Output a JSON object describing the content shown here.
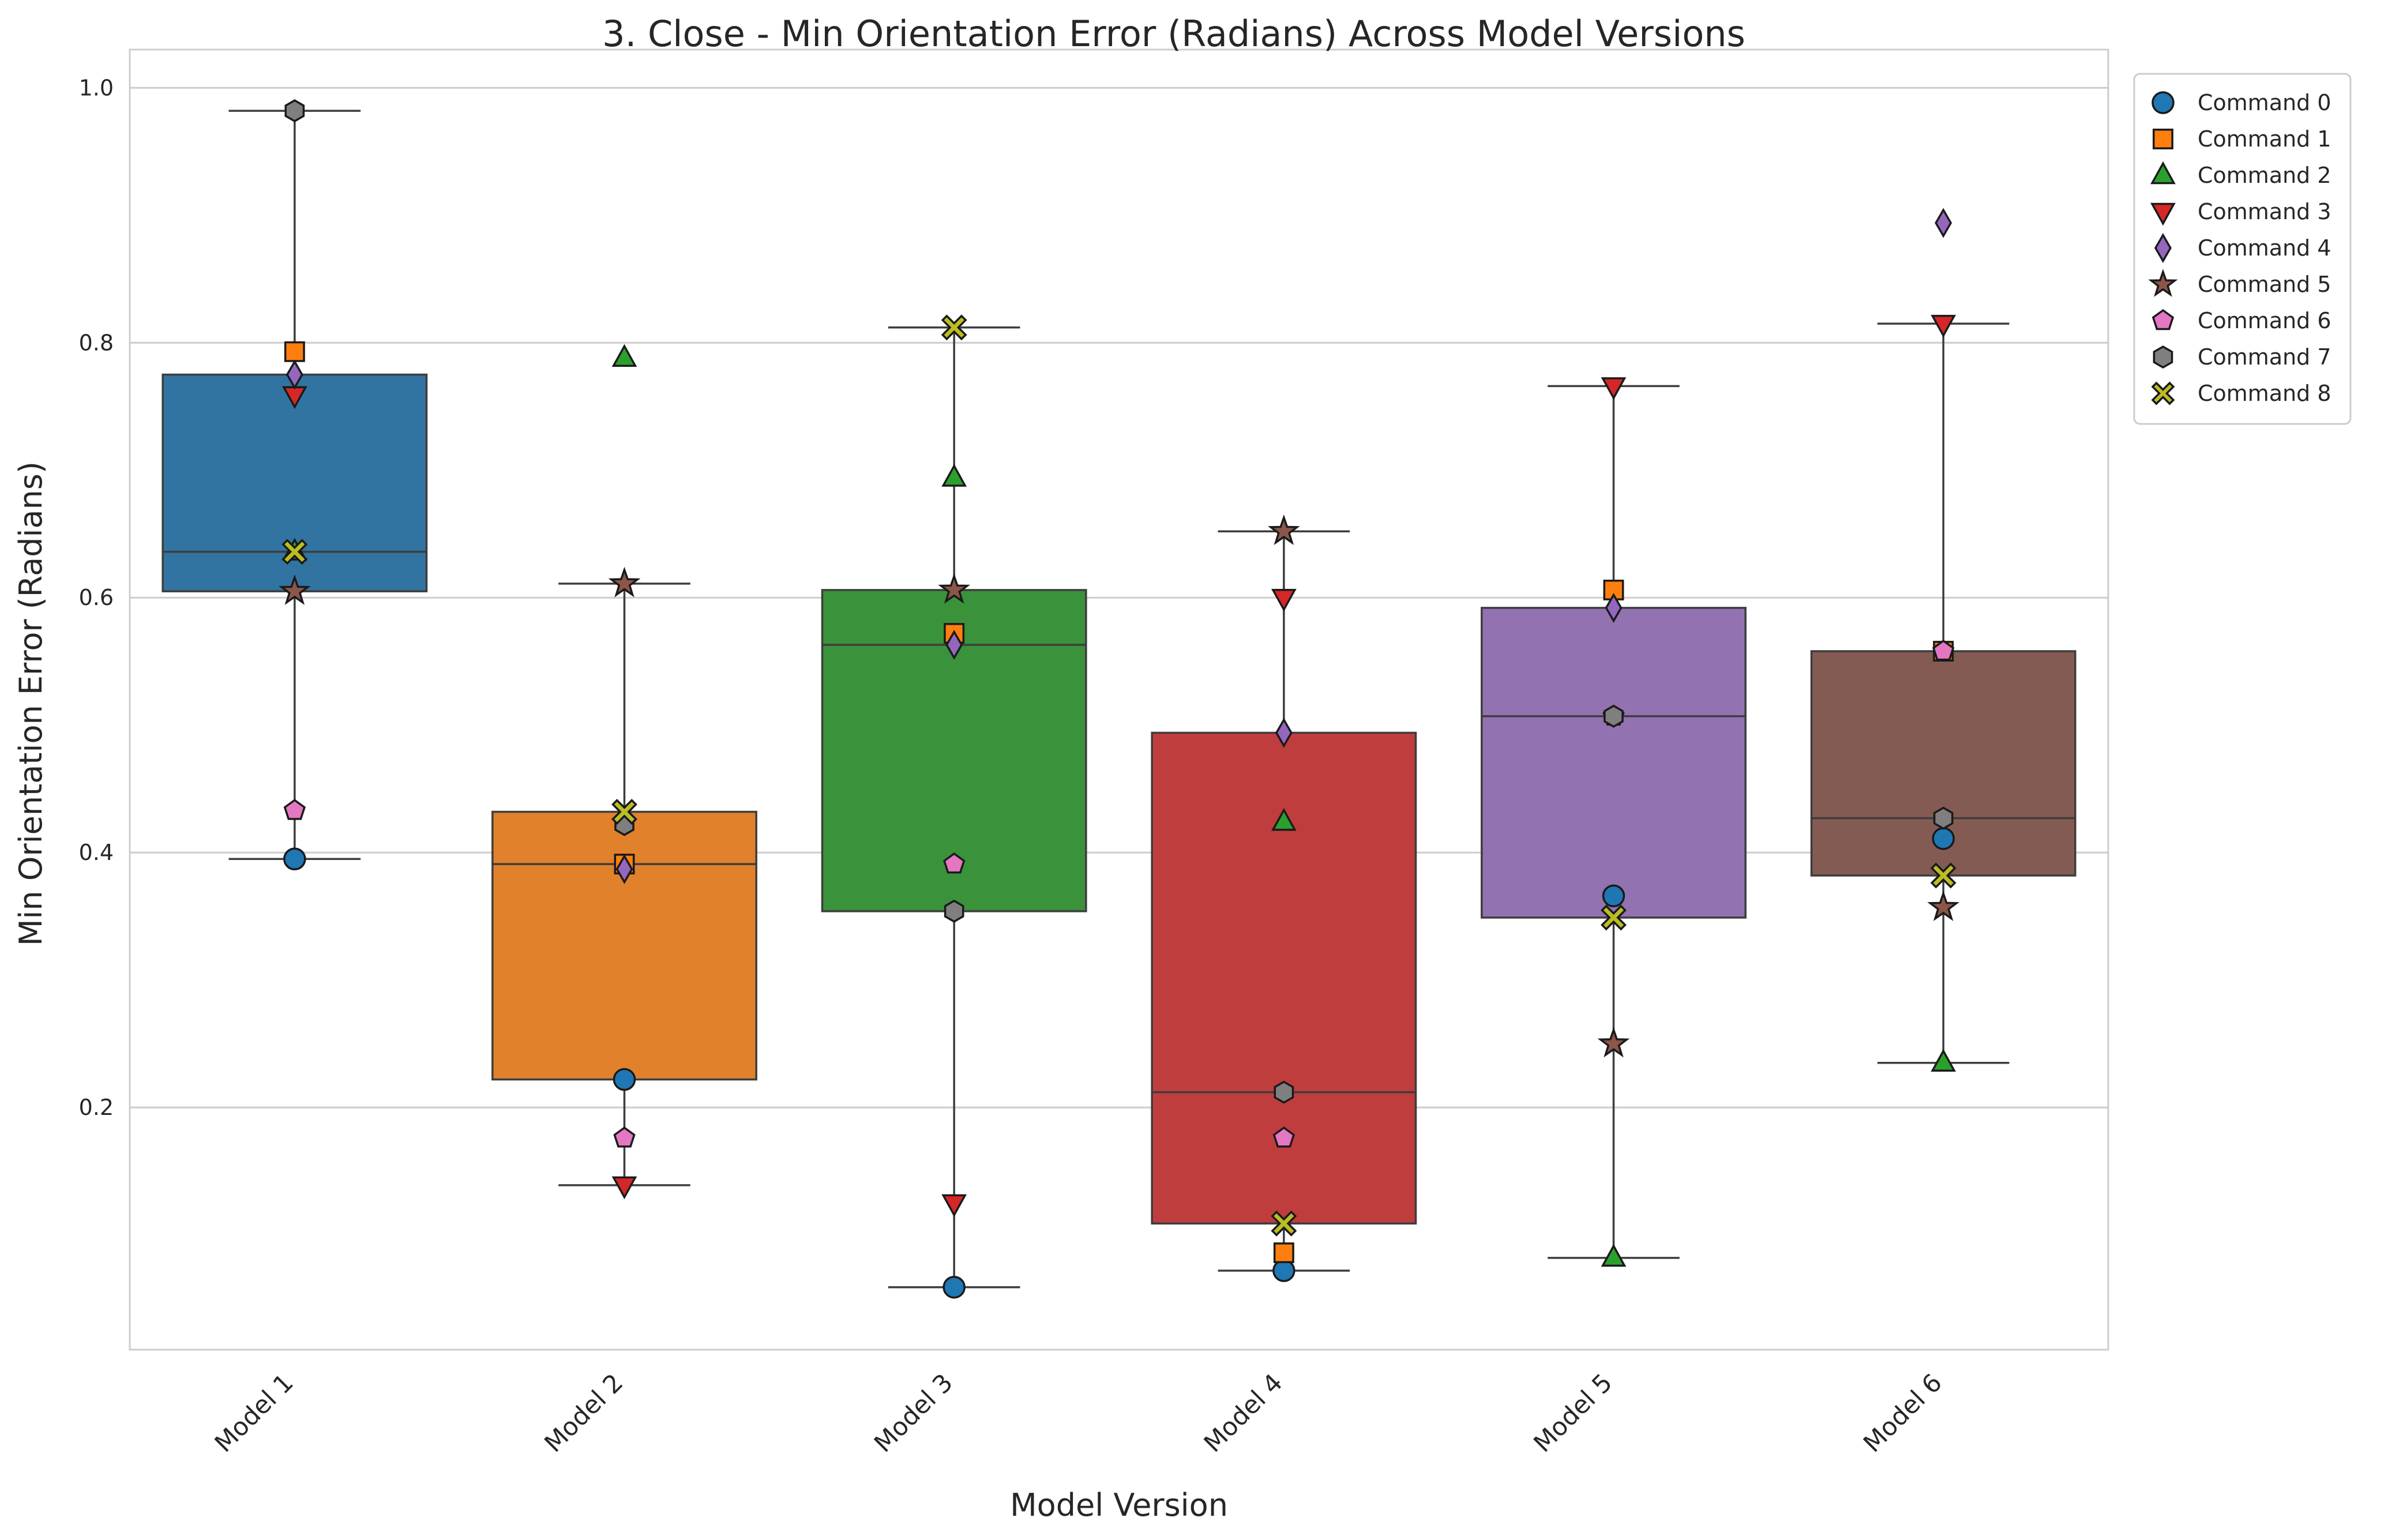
{
  "chart_data": {
    "type": "box",
    "title": "3. Close - Min Orientation Error (Radians) Across Model Versions",
    "xlabel": "Model Version",
    "ylabel": "Min Orientation Error (Radians)",
    "ylim": [
      0.01,
      1.03
    ],
    "yticks": [
      "0.2",
      "0.4",
      "0.6",
      "0.8",
      "1.0"
    ],
    "ytick_values": [
      0.2,
      0.4,
      0.6,
      0.8,
      1.0
    ],
    "grid": "horizontal",
    "legend_position": "outside-top-right",
    "categories": [
      "Model 1",
      "Model 2",
      "Model 3",
      "Model 4",
      "Model 5",
      "Model 6"
    ],
    "box_colors": [
      "#3274a1",
      "#e1812c",
      "#3a923a",
      "#c03d3e",
      "#9372b2",
      "#845b53"
    ],
    "boxes": [
      {
        "whisker_low": 0.395,
        "q1": 0.605,
        "median": 0.636,
        "q3": 0.775,
        "whisker_high": 0.982
      },
      {
        "whisker_low": 0.139,
        "q1": 0.222,
        "median": 0.391,
        "q3": 0.432,
        "whisker_high": 0.611
      },
      {
        "whisker_low": 0.059,
        "q1": 0.354,
        "median": 0.563,
        "q3": 0.606,
        "whisker_high": 0.812
      },
      {
        "whisker_low": 0.072,
        "q1": 0.109,
        "median": 0.212,
        "q3": 0.494,
        "whisker_high": 0.652
      },
      {
        "whisker_low": 0.082,
        "q1": 0.349,
        "median": 0.507,
        "q3": 0.592,
        "whisker_high": 0.766
      },
      {
        "whisker_low": 0.235,
        "q1": 0.382,
        "median": 0.427,
        "q3": 0.558,
        "whisker_high": 0.815
      }
    ],
    "series": [
      {
        "name": "Command 0",
        "marker": "circle",
        "color": "#1f77b4",
        "values": [
          0.395,
          0.222,
          0.059,
          0.072,
          0.366,
          0.411
        ]
      },
      {
        "name": "Command 1",
        "marker": "square",
        "color": "#ff7f0e",
        "values": [
          0.793,
          0.391,
          0.572,
          0.086,
          0.606,
          0.558
        ]
      },
      {
        "name": "Command 2",
        "marker": "triangle-up",
        "color": "#2ca02c",
        "values": [
          0.636,
          0.788,
          0.694,
          0.424,
          0.082,
          0.235
        ]
      },
      {
        "name": "Command 3",
        "marker": "triangle-down",
        "color": "#d62728",
        "values": [
          0.759,
          0.139,
          0.125,
          0.6,
          0.766,
          0.815
        ]
      },
      {
        "name": "Command 4",
        "marker": "diamond",
        "color": "#9467bd",
        "values": [
          0.775,
          0.387,
          0.563,
          0.494,
          0.592,
          0.894
        ]
      },
      {
        "name": "Command 5",
        "marker": "star",
        "color": "#8c564b",
        "values": [
          0.605,
          0.611,
          0.606,
          0.652,
          0.25,
          0.357
        ]
      },
      {
        "name": "Command 6",
        "marker": "pentagon",
        "color": "#e377c2",
        "values": [
          0.433,
          0.176,
          0.391,
          0.176,
          0.507,
          0.558
        ]
      },
      {
        "name": "Command 7",
        "marker": "hexagon",
        "color": "#7f7f7f",
        "values": [
          0.982,
          0.422,
          0.354,
          0.212,
          0.507,
          0.427
        ]
      },
      {
        "name": "Command 8",
        "marker": "x",
        "color": "#bcbd22",
        "values": [
          0.636,
          0.432,
          0.812,
          0.109,
          0.349,
          0.382
        ]
      }
    ]
  }
}
